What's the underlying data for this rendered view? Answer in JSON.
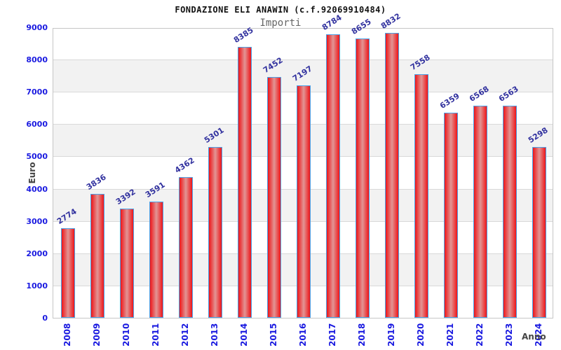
{
  "header": {
    "title": "FONDAZIONE ELI ANAWIN (c.f.92069910484)",
    "subtitle": "Importi"
  },
  "chart_data": {
    "type": "bar",
    "title": "FONDAZIONE ELI ANAWIN (c.f.92069910484)",
    "subtitle": "Importi",
    "xlabel": "Anno",
    "ylabel": "Euro",
    "categories": [
      "2008",
      "2009",
      "2010",
      "2011",
      "2012",
      "2013",
      "2014",
      "2015",
      "2016",
      "2017",
      "2018",
      "2019",
      "2020",
      "2021",
      "2022",
      "2023",
      "2024"
    ],
    "values": [
      2774,
      3836,
      3392,
      3591,
      4362,
      5301,
      8385,
      7452,
      7197,
      8784,
      8655,
      8832,
      7558,
      6359,
      6568,
      6563,
      5298
    ],
    "ylim": [
      0,
      9000
    ],
    "ytick_step": 1000,
    "grid": true,
    "legend": "none",
    "band_fill": "alternating horizontal bands",
    "colors": {
      "bar_edge": "#ee1518",
      "bar_center": "#e29595",
      "bar_border": "#4aa2e8",
      "axis_tick_label": "#1a1ae0",
      "value_label": "#32329f",
      "band": "#f2f2f2",
      "gridline": "#d9d9d9",
      "plot_border": "#c6c6c6",
      "title": "#111111",
      "subtitle": "#666666",
      "axis_title": "#444444"
    }
  }
}
